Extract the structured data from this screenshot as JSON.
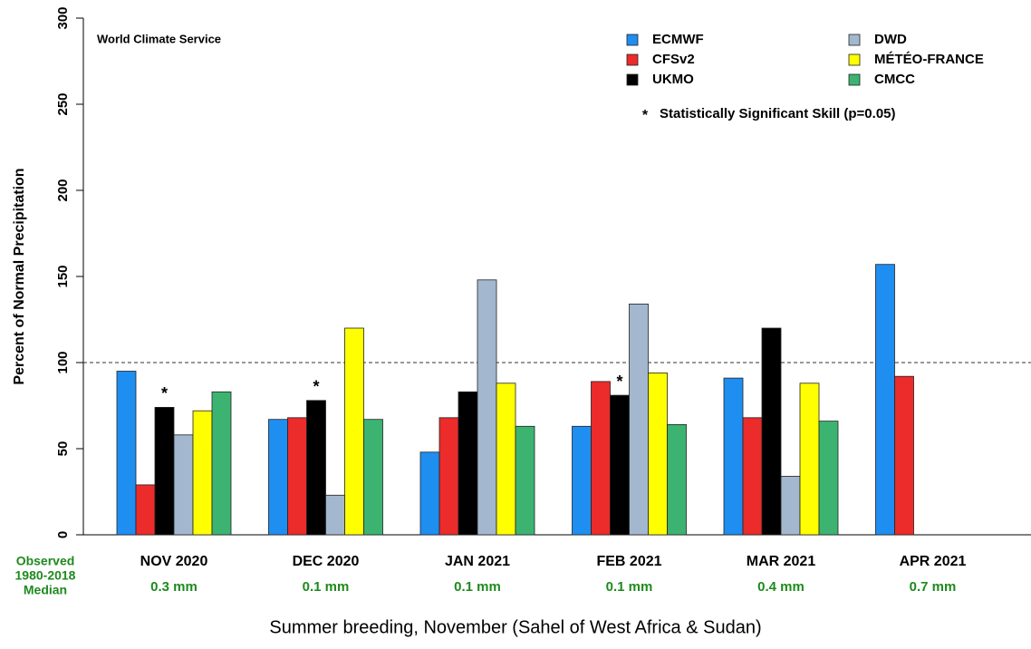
{
  "chart_data": {
    "type": "bar",
    "watermark": "World Climate Service",
    "ylabel": "Percent of Normal Precipitation",
    "caption": "Summer breeding, November (Sahel of West Africa & Sudan)",
    "categories": [
      "NOV 2020",
      "DEC 2020",
      "JAN 2021",
      "FEB 2021",
      "MAR 2021",
      "APR 2021"
    ],
    "observed_title": [
      "Observed",
      "1980-2018",
      "Median"
    ],
    "observed_labels": [
      "0.3 mm",
      "0.1 mm",
      "0.1 mm",
      "0.1 mm",
      "0.4 mm",
      "0.7 mm"
    ],
    "series": [
      {
        "name": "ECMWF",
        "color": "#1f8ef1",
        "values": [
          95,
          67,
          48,
          63,
          91,
          157
        ]
      },
      {
        "name": "CFSv2",
        "color": "#ec2b2b",
        "values": [
          29,
          68,
          68,
          89,
          68,
          92
        ]
      },
      {
        "name": "UKMO",
        "color": "#000000",
        "values": [
          74,
          78,
          83,
          81,
          120,
          null
        ]
      },
      {
        "name": "DWD",
        "color": "#a3b7cf",
        "values": [
          58,
          23,
          148,
          134,
          34,
          null
        ]
      },
      {
        "name": "MÉTÉO-FRANCE",
        "color": "#ffff00",
        "values": [
          72,
          120,
          88,
          94,
          88,
          null
        ]
      },
      {
        "name": "CMCC",
        "color": "#3cb371",
        "values": [
          83,
          67,
          63,
          64,
          66,
          null
        ]
      }
    ],
    "significance_marker": "*",
    "significance_note": "Statistically Significant Skill (p=0.05)",
    "significant": [
      {
        "category": 0,
        "series": 2
      },
      {
        "category": 1,
        "series": 2
      },
      {
        "category": 3,
        "series": 2
      }
    ],
    "reference_line": 100,
    "ylim": [
      0,
      300
    ],
    "yticks": [
      0,
      50,
      100,
      150,
      200,
      250,
      300
    ]
  }
}
